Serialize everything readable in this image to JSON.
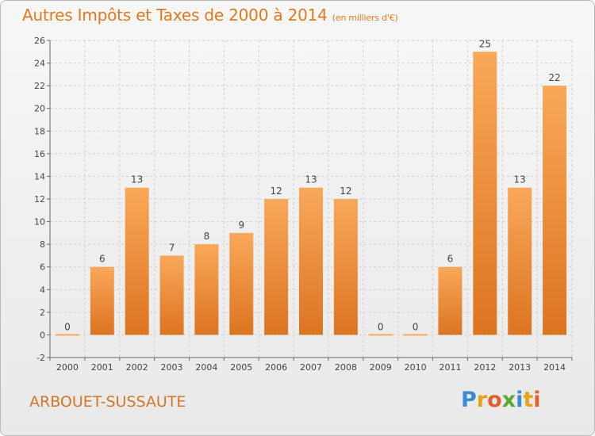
{
  "header": {
    "title": "Autres Impôts et Taxes de 2000 à 2014",
    "unit": "(en milliers d'€)"
  },
  "footer": {
    "commune": "ARBOUET-SUSSAUTE",
    "logo_letters": [
      "P",
      "r",
      "o",
      "x",
      "i",
      "t",
      "i"
    ],
    "logo_colors": [
      "#3a8ad6",
      "#e8a319",
      "#e35f2b",
      "#5aa832",
      "#3a8ad6",
      "#e8a319",
      "#e35f2b"
    ]
  },
  "chart_data": {
    "type": "bar",
    "title": "Autres Impôts et Taxes de 2000 à 2014",
    "subtitle": "(en milliers d'€)",
    "xlabel": "",
    "ylabel": "",
    "categories": [
      "2000",
      "2001",
      "2002",
      "2003",
      "2004",
      "2005",
      "2006",
      "2007",
      "2008",
      "2009",
      "2010",
      "2011",
      "2012",
      "2013",
      "2014"
    ],
    "values": [
      0,
      6,
      13,
      7,
      8,
      9,
      12,
      13,
      12,
      0,
      0,
      6,
      25,
      13,
      22
    ],
    "data_labels": [
      "0",
      "6",
      "13",
      "7",
      "8",
      "9",
      "12",
      "13",
      "12",
      "0",
      "0",
      "6",
      "25",
      "13",
      "22"
    ],
    "ylim": [
      -2,
      26
    ],
    "yticks": [
      -2,
      0,
      2,
      4,
      6,
      8,
      10,
      12,
      14,
      16,
      18,
      20,
      22,
      24,
      26
    ],
    "grid": true,
    "legend": "none",
    "colors": {
      "bar_top": "#f9a85a",
      "bar_bottom": "#dc7420",
      "grid": "#cfcfcf",
      "title": "#e07a1f"
    }
  }
}
